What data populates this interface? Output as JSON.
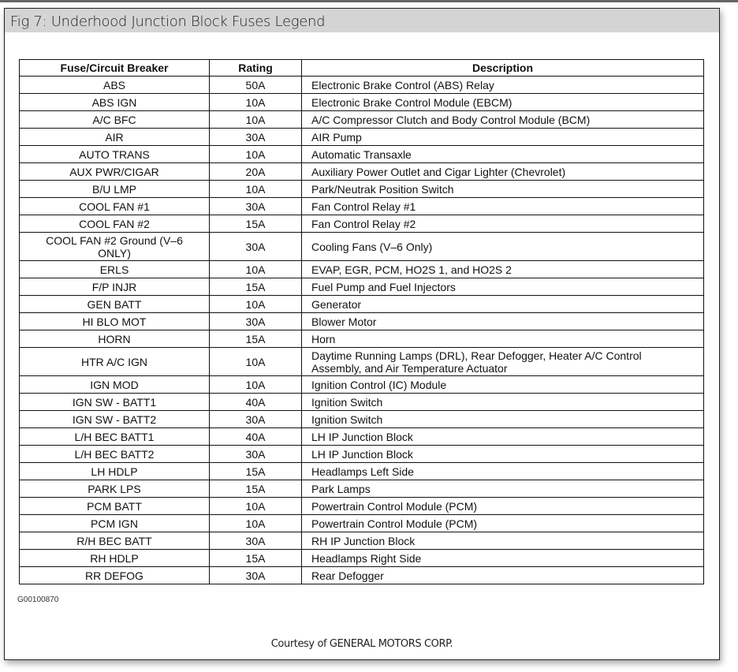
{
  "title": "Fig 7: Underhood Junction Block Fuses Legend",
  "table": {
    "headers": [
      "Fuse/Circuit Breaker",
      "Rating",
      "Description"
    ],
    "rows": [
      [
        "ABS",
        "50A",
        "Electronic Brake Control (ABS) Relay"
      ],
      [
        "ABS IGN",
        "10A",
        "Electronic Brake Control Module (EBCM)"
      ],
      [
        "A/C BFC",
        "10A",
        "A/C Compressor Clutch and Body Control Module (BCM)"
      ],
      [
        "AIR",
        "30A",
        "AIR Pump"
      ],
      [
        "AUTO TRANS",
        "10A",
        "Automatic Transaxle"
      ],
      [
        "AUX PWR/CIGAR",
        "20A",
        "Auxiliary Power Outlet and Cigar Lighter (Chevrolet)"
      ],
      [
        "B/U LMP",
        "10A",
        "Park/Neutrak Position Switch"
      ],
      [
        "COOL FAN #1",
        "30A",
        "Fan Control Relay #1"
      ],
      [
        "COOL FAN #2",
        "15A",
        "Fan Control Relay #2"
      ],
      [
        "COOL FAN #2 Ground (V–6 ONLY)",
        "30A",
        "Cooling Fans (V–6 Only)"
      ],
      [
        "ERLS",
        "10A",
        "EVAP, EGR, PCM, HO2S 1, and HO2S 2"
      ],
      [
        "F/P INJR",
        "15A",
        "Fuel Pump and Fuel Injectors"
      ],
      [
        "GEN BATT",
        "10A",
        "Generator"
      ],
      [
        "HI BLO MOT",
        "30A",
        "Blower Motor"
      ],
      [
        "HORN",
        "15A",
        "Horn"
      ],
      [
        "HTR A/C IGN",
        "10A",
        "Daytime Running Lamps (DRL), Rear Defogger, Heater A/C Control Assembly, and Air Temperature Actuator"
      ],
      [
        "IGN MOD",
        "10A",
        "Ignition Control (IC) Module"
      ],
      [
        "IGN SW - BATT1",
        "40A",
        "Ignition Switch"
      ],
      [
        "IGN SW - BATT2",
        "30A",
        "Ignition Switch"
      ],
      [
        "L/H BEC BATT1",
        "40A",
        "LH IP Junction Block"
      ],
      [
        "L/H BEC BATT2",
        "30A",
        "LH IP Junction Block"
      ],
      [
        "LH HDLP",
        "15A",
        "Headlamps Left Side"
      ],
      [
        "PARK LPS",
        "15A",
        "Park Lamps"
      ],
      [
        "PCM BATT",
        "10A",
        "Powertrain Control Module (PCM)"
      ],
      [
        "PCM IGN",
        "10A",
        "Powertrain Control Module (PCM)"
      ],
      [
        "R/H BEC BATT",
        "30A",
        "RH IP Junction Block"
      ],
      [
        "RH HDLP",
        "15A",
        "Headlamps Right Side"
      ],
      [
        "RR DEFOG",
        "30A",
        "Rear Defogger"
      ]
    ]
  },
  "figure_id": "G00100870",
  "courtesy": "Courtesy of GENERAL MOTORS CORP."
}
